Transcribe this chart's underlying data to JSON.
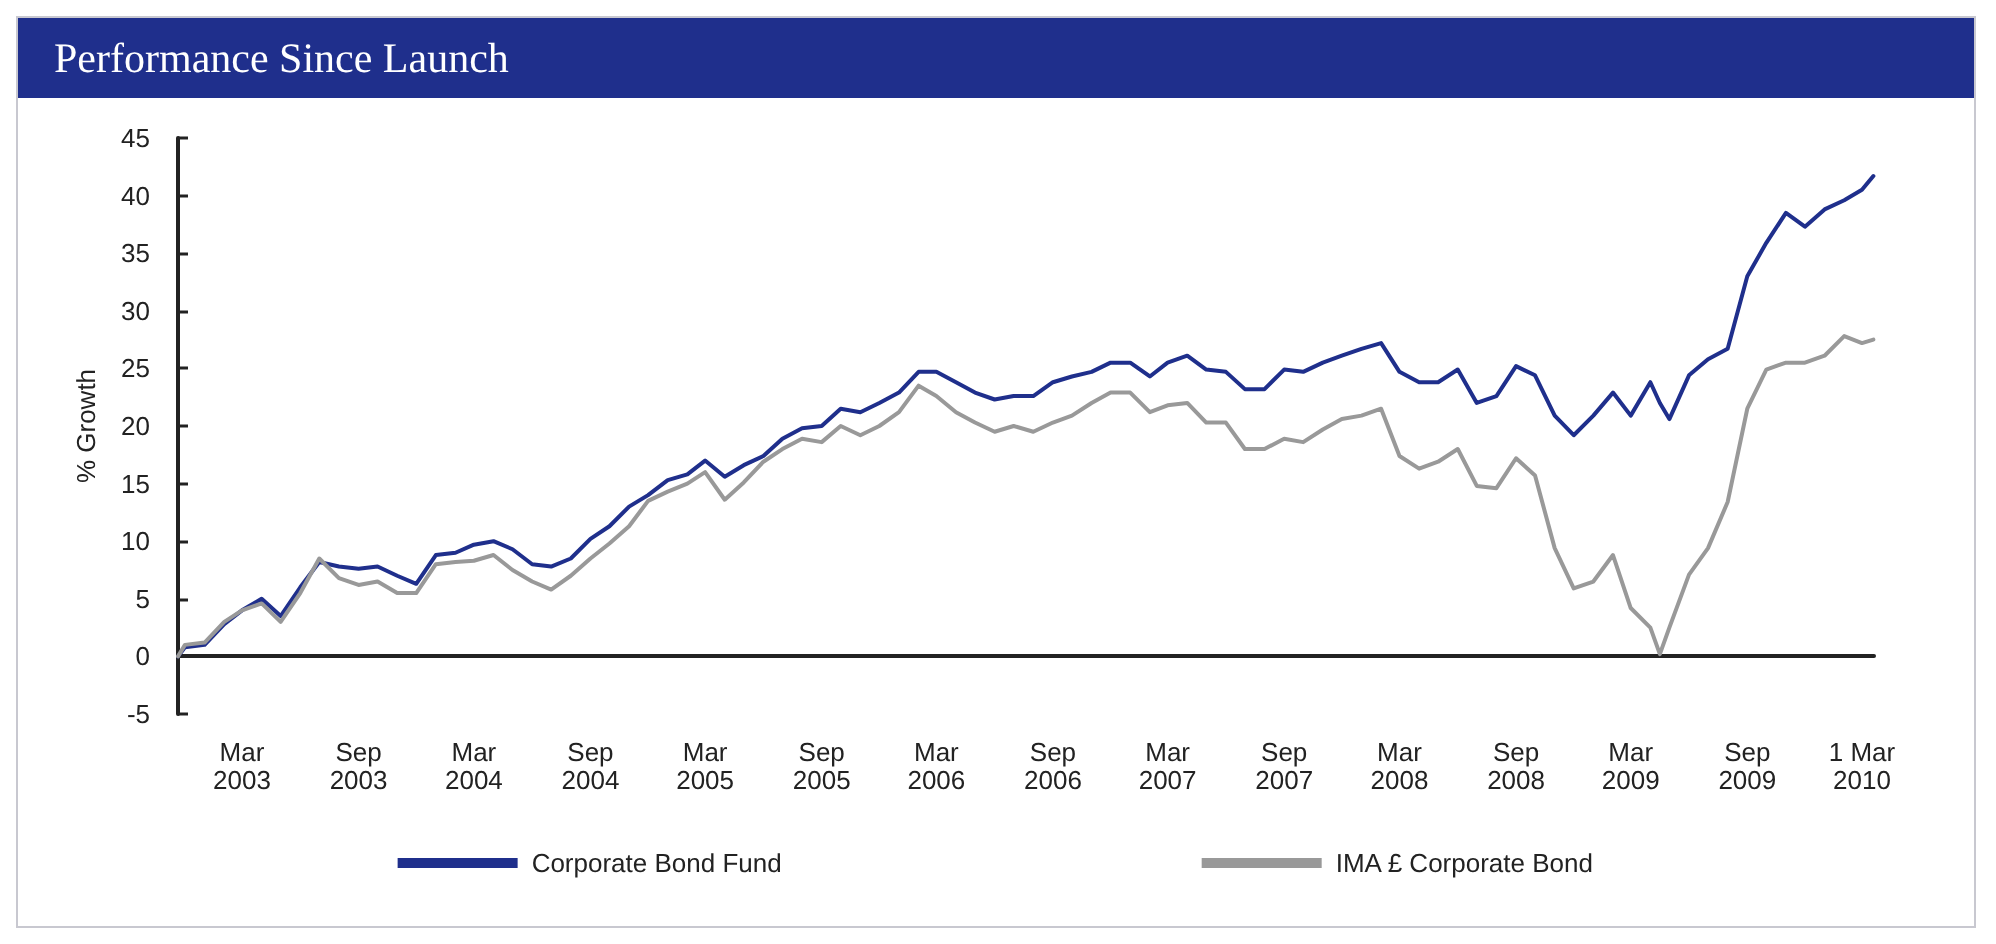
{
  "chart_data": {
    "type": "line",
    "title": "Performance Since Launch",
    "ylabel": "% Growth",
    "x": [
      "2002-11-20",
      "2002-12-01",
      "2003-01-01",
      "2003-02-01",
      "2003-03-01",
      "2003-04-01",
      "2003-05-01",
      "2003-06-01",
      "2003-07-01",
      "2003-08-01",
      "2003-09-01",
      "2003-10-01",
      "2003-11-01",
      "2003-12-01",
      "2004-01-01",
      "2004-02-01",
      "2004-03-01",
      "2004-04-01",
      "2004-05-01",
      "2004-06-01",
      "2004-07-01",
      "2004-08-01",
      "2004-09-01",
      "2004-10-01",
      "2004-11-01",
      "2004-12-01",
      "2005-01-01",
      "2005-02-01",
      "2005-03-01",
      "2005-04-01",
      "2005-05-01",
      "2005-06-01",
      "2005-07-01",
      "2005-08-01",
      "2005-09-01",
      "2005-10-01",
      "2005-11-01",
      "2005-12-01",
      "2006-01-01",
      "2006-02-01",
      "2006-03-01",
      "2006-04-01",
      "2006-05-01",
      "2006-06-01",
      "2006-07-01",
      "2006-08-01",
      "2006-09-01",
      "2006-10-01",
      "2006-11-01",
      "2006-12-01",
      "2007-01-01",
      "2007-02-01",
      "2007-03-01",
      "2007-04-01",
      "2007-05-01",
      "2007-06-01",
      "2007-07-01",
      "2007-08-01",
      "2007-09-01",
      "2007-10-01",
      "2007-11-01",
      "2007-12-01",
      "2008-01-01",
      "2008-02-01",
      "2008-03-01",
      "2008-04-01",
      "2008-05-01",
      "2008-06-01",
      "2008-07-01",
      "2008-08-01",
      "2008-09-01",
      "2008-10-01",
      "2008-11-01",
      "2008-12-01",
      "2009-01-01",
      "2009-02-01",
      "2009-03-01",
      "2009-04-01",
      "2009-04-16",
      "2009-05-01",
      "2009-06-01",
      "2009-07-01",
      "2009-08-01",
      "2009-09-01",
      "2009-10-01",
      "2009-11-01",
      "2009-12-01",
      "2010-01-01",
      "2010-02-01",
      "2010-03-01",
      "2010-03-19"
    ],
    "series": [
      {
        "name": "Corporate Bond Fund",
        "color": "#1f2f8c",
        "values": [
          0,
          0.8,
          1,
          2.8,
          4,
          5,
          3.5,
          6,
          8.2,
          7.8,
          7.6,
          7.8,
          7,
          6.3,
          8.8,
          9,
          9.7,
          10,
          9.3,
          8,
          7.8,
          8.5,
          10.2,
          11.3,
          13,
          14,
          15.3,
          15.8,
          17,
          15.6,
          16.6,
          17.4,
          18.9,
          19.8,
          20,
          21.5,
          21.2,
          22,
          22.9,
          24.7,
          24.7,
          23.8,
          22.9,
          22.3,
          22.6,
          22.6,
          23.8,
          24.3,
          24.7,
          25.5,
          25.5,
          24.3,
          25.5,
          26.1,
          24.9,
          24.7,
          23.2,
          23.2,
          24.9,
          24.7,
          25.5,
          26.1,
          26.7,
          27.2,
          24.7,
          23.8,
          23.8,
          24.9,
          22,
          22.6,
          25.2,
          24.4,
          20.9,
          19.2,
          20.9,
          22.9,
          20.9,
          23.8,
          22,
          20.6,
          24.4,
          25.8,
          26.7,
          33,
          35.9,
          38.5,
          37.3,
          38.8,
          39.6,
          40.5,
          41.7
        ]
      },
      {
        "name": "IMA £ Corporate Bond",
        "color": "#999999",
        "values": [
          0,
          1,
          1.2,
          3,
          4,
          4.6,
          3,
          5.5,
          8.5,
          6.8,
          6.2,
          6.5,
          5.5,
          5.5,
          8,
          8.2,
          8.3,
          8.8,
          7.5,
          6.5,
          5.8,
          7,
          8.5,
          9.8,
          11.3,
          13.5,
          14.3,
          15,
          16,
          13.6,
          15.1,
          16.9,
          18,
          18.9,
          18.6,
          20,
          19.2,
          20,
          21.2,
          23.5,
          22.6,
          21.2,
          20.3,
          19.5,
          20,
          19.5,
          20.3,
          20.9,
          22,
          22.9,
          22.9,
          21.2,
          21.8,
          22,
          20.3,
          20.3,
          18,
          18,
          18.9,
          18.6,
          19.7,
          20.6,
          20.9,
          21.5,
          17.4,
          16.3,
          16.9,
          18,
          14.8,
          14.6,
          17.2,
          15.7,
          9.4,
          5.9,
          6.5,
          8.8,
          4.2,
          2.5,
          0.2,
          2.5,
          7.1,
          9.4,
          13.4,
          21.5,
          24.9,
          25.5,
          25.5,
          26.1,
          27.8,
          27.2,
          27.5
        ]
      }
    ],
    "xlim": [
      "2002-11-20",
      "2010-03-20"
    ],
    "xticks": [
      {
        "value": "2003-03-01",
        "label": "Mar\n2003"
      },
      {
        "value": "2003-09-01",
        "label": "Sep\n2003"
      },
      {
        "value": "2004-03-01",
        "label": "Mar\n2004"
      },
      {
        "value": "2004-09-01",
        "label": "Sep\n2004"
      },
      {
        "value": "2005-03-01",
        "label": "Mar\n2005"
      },
      {
        "value": "2005-09-01",
        "label": "Sep\n2005"
      },
      {
        "value": "2006-03-01",
        "label": "Mar\n2006"
      },
      {
        "value": "2006-09-01",
        "label": "Sep\n2006"
      },
      {
        "value": "2007-03-01",
        "label": "Mar\n2007"
      },
      {
        "value": "2007-09-01",
        "label": "Sep\n2007"
      },
      {
        "value": "2008-03-01",
        "label": "Mar\n2008"
      },
      {
        "value": "2008-09-01",
        "label": "Sep\n2008"
      },
      {
        "value": "2009-03-01",
        "label": "Mar\n2009"
      },
      {
        "value": "2009-09-01",
        "label": "Sep\n2009"
      },
      {
        "value": "2010-03-01",
        "label": "1 Mar\n2010"
      }
    ],
    "ylim": [
      -5,
      45
    ],
    "yticks": [
      -5,
      0,
      5,
      10,
      15,
      20,
      25,
      30,
      35,
      40,
      45
    ],
    "legend": "bottom",
    "marker": "none",
    "line_style": "solid"
  }
}
